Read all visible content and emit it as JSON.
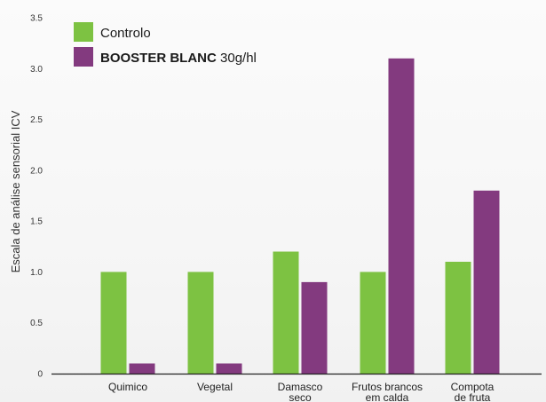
{
  "chart_data": {
    "type": "bar",
    "categories": [
      "Quimico",
      "Vegetal",
      "Damasco\nseco",
      "Frutos brancos\nem calda",
      "Compota\nde fruta"
    ],
    "series": [
      {
        "name": "Controlo",
        "color": "#7dc242",
        "values": [
          1.0,
          1.0,
          1.2,
          1.0,
          1.1
        ]
      },
      {
        "name": "BOOSTER BLANC 30g/hl",
        "name_bold": "BOOSTER BLANC",
        "name_rest": " 30g/hl",
        "color": "#833a7f",
        "values": [
          0.1,
          0.1,
          0.9,
          3.1,
          1.8
        ]
      }
    ],
    "ylabel": "Escala de análise sensorial ICV",
    "ylim": [
      0,
      3.5
    ],
    "yticks": [
      "0",
      "0.5",
      "1.0",
      "1.5",
      "2.0",
      "2.5",
      "3.0",
      "3.5"
    ],
    "legend": "top-left",
    "grid": false
  }
}
